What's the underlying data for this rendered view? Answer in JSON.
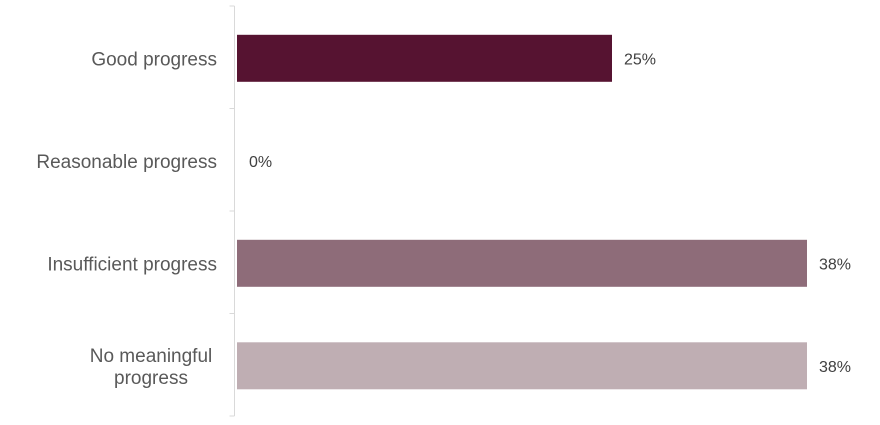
{
  "chart_data": {
    "type": "bar",
    "orientation": "horizontal",
    "categories": [
      [
        "Good progress"
      ],
      [
        "Reasonable progress"
      ],
      [
        "Insufficient progress"
      ],
      [
        "No meaningful",
        "progress"
      ]
    ],
    "values": [
      25,
      0,
      38,
      38
    ],
    "value_labels": [
      "25%",
      "0%",
      "38%",
      "38%"
    ],
    "unit": "%",
    "colors": [
      "#561331",
      "#561331",
      "#8e6c79",
      "#bfaeb3"
    ],
    "xlim": [
      0,
      38
    ],
    "title": "",
    "xlabel": "",
    "ylabel": "",
    "grid": false,
    "legend": "none"
  }
}
